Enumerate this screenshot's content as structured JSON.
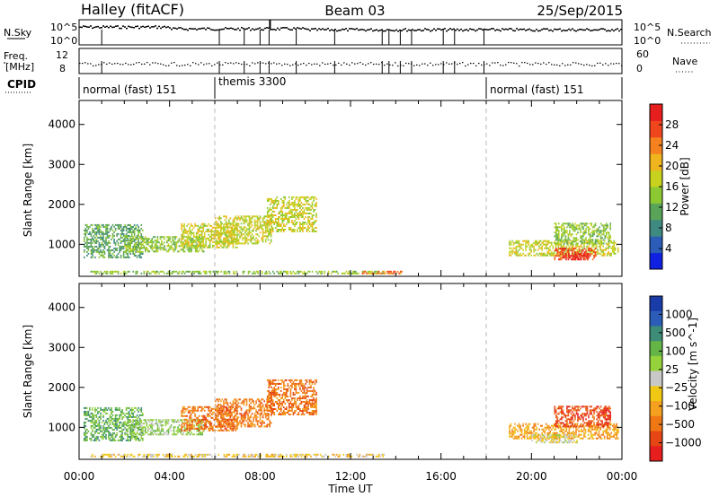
{
  "header": {
    "station": "Halley (fitACF)",
    "beam": "Beam 03",
    "date": "25/Sep/2015"
  },
  "top_panels": {
    "nsky_label": "N.Sky",
    "nsearch_label": "N.Search",
    "nsky_ticks": [
      "10^5",
      "10^0"
    ],
    "nsearch_ticks": [
      "10^5",
      "10^0"
    ],
    "freq_label_line1": "Freq.",
    "freq_label_line2": "[MHz]",
    "freq_ticks": [
      "12",
      "8"
    ],
    "nave_label": "Nave",
    "nave_ticks": [
      "60",
      "0"
    ],
    "cpid_label": "CPID",
    "cpid_segments": [
      {
        "label": "normal (fast) 151",
        "start_hr": 0,
        "end_hr": 6
      },
      {
        "label": "themis 3300",
        "start_hr": 6,
        "end_hr": 18
      },
      {
        "label": "normal (fast) 151",
        "start_hr": 18,
        "end_hr": 24
      }
    ]
  },
  "chart_data": [
    {
      "type": "heatmap",
      "name": "power",
      "ylabel": "Slant Range [km]",
      "yticks": [
        1000,
        2000,
        3000,
        4000
      ],
      "ylim": [
        200,
        4600
      ],
      "xlim": [
        0,
        24
      ],
      "colorbar": {
        "label": "Power [dB]",
        "ticks": [
          "4",
          "8",
          "12",
          "16",
          "20",
          "24",
          "28"
        ],
        "colors": [
          "#1020e0",
          "#2a5cb8",
          "#3f8a80",
          "#5aa45a",
          "#8cc832",
          "#c8d21e",
          "#f0b41e",
          "#f5821e",
          "#f0461e",
          "#e61e1e"
        ]
      },
      "echo_regions": [
        {
          "t0": 0.2,
          "t1": 2.8,
          "r0": 650,
          "r1": 1500,
          "level": 3
        },
        {
          "t0": 2.0,
          "t1": 5.5,
          "r0": 800,
          "r1": 1200,
          "level": 4
        },
        {
          "t0": 4.5,
          "t1": 7.0,
          "r0": 900,
          "r1": 1500,
          "level": 5
        },
        {
          "t0": 6.0,
          "t1": 8.5,
          "r0": 1000,
          "r1": 1700,
          "level": 5
        },
        {
          "t0": 8.3,
          "t1": 10.5,
          "r0": 1300,
          "r1": 2200,
          "level": 5
        },
        {
          "t0": 0.5,
          "t1": 13.5,
          "r0": 250,
          "r1": 300,
          "level": 4
        },
        {
          "t0": 12.5,
          "t1": 14.3,
          "r0": 250,
          "r1": 320,
          "level": 7
        },
        {
          "t0": 19.0,
          "t1": 23.8,
          "r0": 700,
          "r1": 1100,
          "level": 5
        },
        {
          "t0": 21.0,
          "t1": 22.8,
          "r0": 600,
          "r1": 900,
          "level": 8
        },
        {
          "t0": 21.5,
          "t1": 22.5,
          "r0": 600,
          "r1": 750,
          "level": 9
        },
        {
          "t0": 21.0,
          "t1": 23.5,
          "r0": 1000,
          "r1": 1500,
          "level": 4
        }
      ]
    },
    {
      "type": "heatmap",
      "name": "velocity",
      "ylabel": "Slant Range [km]",
      "yticks": [
        1000,
        2000,
        3000,
        4000
      ],
      "ylim": [
        200,
        4600
      ],
      "xlim": [
        0,
        24
      ],
      "xticks": [
        "00:00",
        "04:00",
        "08:00",
        "12:00",
        "16:00",
        "20:00",
        "00:00"
      ],
      "xlabel": "Time UT",
      "colorbar": {
        "label": "Velocity [m s^-1]",
        "ticks": [
          "1000",
          "500",
          "100",
          "25",
          "−25",
          "−100",
          "−500",
          "−1000"
        ],
        "colors": [
          "#1a3ca8",
          "#2a5cb8",
          "#3c8c78",
          "#64b446",
          "#96d23c",
          "#c8c8c8",
          "#f0c814",
          "#f5a01e",
          "#f07814",
          "#e64614",
          "#e61e1e"
        ]
      },
      "echo_regions": [
        {
          "t0": 0.2,
          "t1": 2.8,
          "r0": 650,
          "r1": 1500,
          "level": 3
        },
        {
          "t0": 2.0,
          "t1": 5.5,
          "r0": 800,
          "r1": 1200,
          "level": 4
        },
        {
          "t0": 4.5,
          "t1": 7.0,
          "r0": 900,
          "r1": 1500,
          "level": 8
        },
        {
          "t0": 6.0,
          "t1": 8.5,
          "r0": 1000,
          "r1": 1700,
          "level": 8
        },
        {
          "t0": 8.3,
          "t1": 10.5,
          "r0": 1300,
          "r1": 2200,
          "level": 8
        },
        {
          "t0": 0.5,
          "t1": 13.5,
          "r0": 250,
          "r1": 300,
          "level": 6
        },
        {
          "t0": 19.0,
          "t1": 23.8,
          "r0": 700,
          "r1": 1100,
          "level": 7
        },
        {
          "t0": 20.0,
          "t1": 22.0,
          "r0": 600,
          "r1": 800,
          "level": 5
        },
        {
          "t0": 21.0,
          "t1": 23.5,
          "r0": 1000,
          "r1": 1500,
          "level": 9
        }
      ]
    }
  ],
  "vertical_markers_hr": [
    6,
    18
  ]
}
